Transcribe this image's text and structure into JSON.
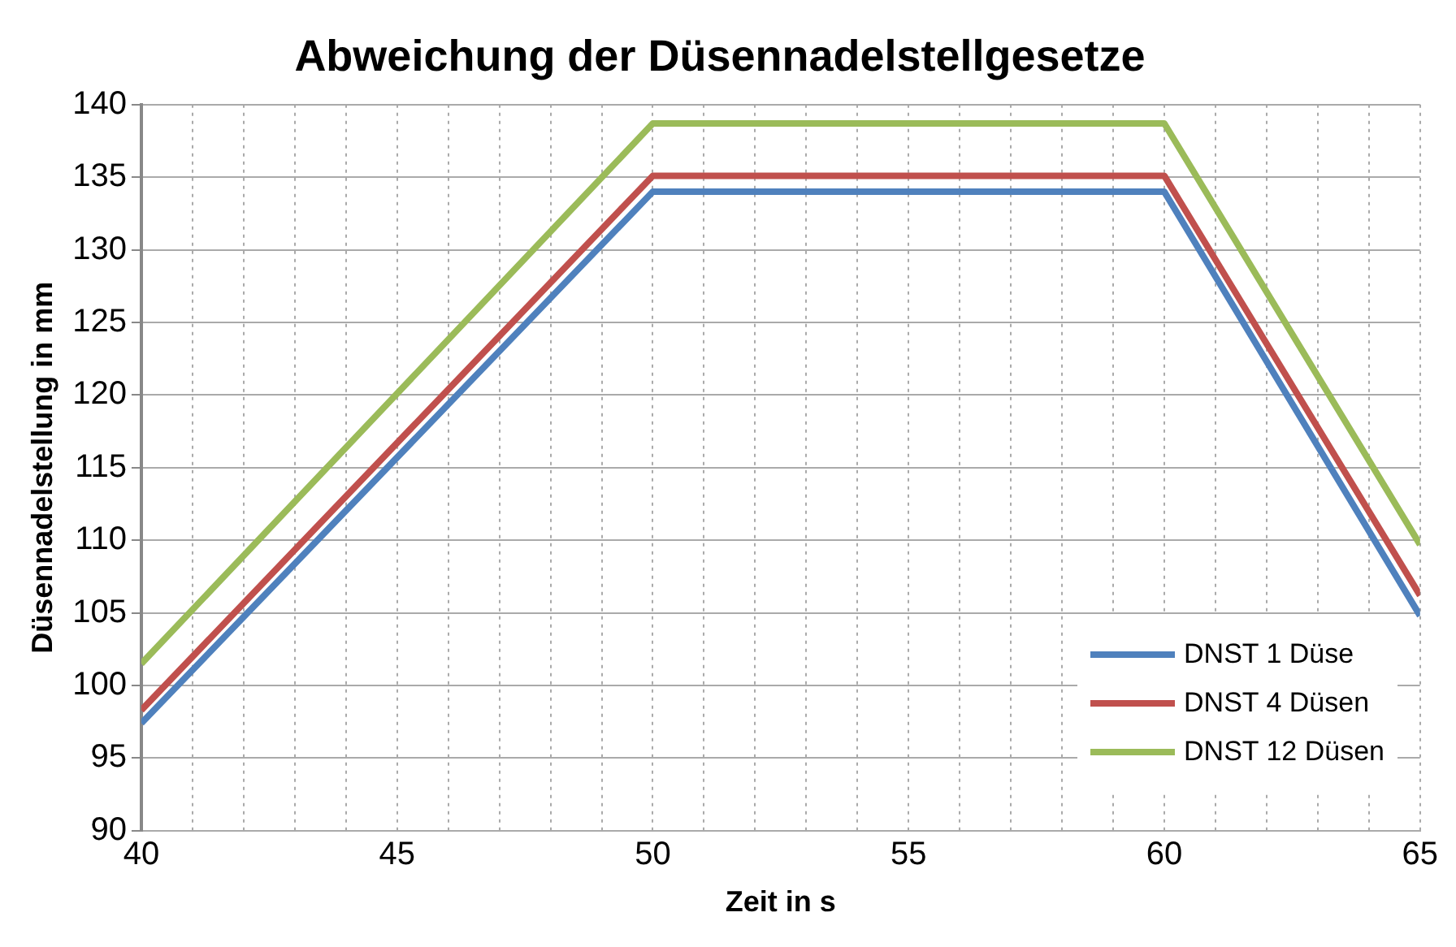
{
  "chart_data": {
    "type": "line",
    "title": "Abweichung der Düsennadelstellgesetze",
    "xlabel": "Zeit in s",
    "ylabel": "Düsennadelstellung in mm",
    "x": [
      40,
      50,
      60,
      65
    ],
    "series": [
      {
        "name": "DNST 1 Düse",
        "color": "#4f81bd",
        "values": [
          97.4,
          134.0,
          134.0,
          104.8
        ]
      },
      {
        "name": "DNST 4 Düsen",
        "color": "#c0504d",
        "values": [
          98.3,
          135.1,
          135.1,
          106.2
        ]
      },
      {
        "name": "DNST 12 Düsen",
        "color": "#9bbb59",
        "values": [
          101.5,
          138.7,
          138.7,
          109.7
        ]
      }
    ],
    "xlim": [
      40,
      65
    ],
    "xticks": [
      40,
      {
        "value": 41,
        "label": null
      },
      {
        "value": 42,
        "label": null
      },
      {
        "value": 43,
        "label": null
      },
      {
        "value": 44,
        "label": null
      },
      45,
      {
        "value": 46,
        "label": null
      },
      {
        "value": 47,
        "label": null
      },
      {
        "value": 48,
        "label": null
      },
      {
        "value": 49,
        "label": null
      },
      50,
      {
        "value": 51,
        "label": null
      },
      {
        "value": 52,
        "label": null
      },
      {
        "value": 53,
        "label": null
      },
      {
        "value": 54,
        "label": null
      },
      55,
      {
        "value": 56,
        "label": null
      },
      {
        "value": 57,
        "label": null
      },
      {
        "value": 58,
        "label": null
      },
      {
        "value": 59,
        "label": null
      },
      60,
      {
        "value": 61,
        "label": null
      },
      {
        "value": 62,
        "label": null
      },
      {
        "value": 63,
        "label": null
      },
      {
        "value": 64,
        "label": null
      },
      65
    ],
    "ylim": [
      90,
      140
    ],
    "yticks": [
      90,
      95,
      100,
      105,
      110,
      115,
      120,
      125,
      130,
      135,
      140
    ],
    "grid": true,
    "legend": "bottom right",
    "marker": "none",
    "line_style": "solid"
  }
}
